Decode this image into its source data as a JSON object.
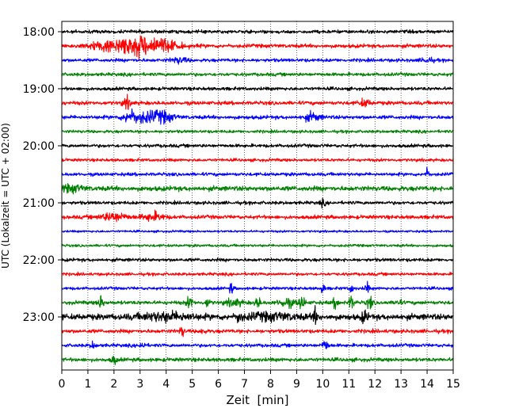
{
  "chart_data": {
    "type": "line",
    "title": "",
    "xlabel": "Zeit  [min]",
    "ylabel": "UTC (Lokalzeit = UTC + 02:00)",
    "xlim": [
      0,
      15
    ],
    "x_ticks": [
      0,
      1,
      2,
      3,
      4,
      5,
      6,
      7,
      8,
      9,
      10,
      11,
      12,
      13,
      14,
      15
    ],
    "x_tick_labels": [
      "0",
      "1",
      "2",
      "3",
      "4",
      "5",
      "6",
      "7",
      "8",
      "9",
      "10",
      "11",
      "12",
      "13",
      "14",
      "15"
    ],
    "y_tick_labels": [
      "18:00",
      "19:00",
      "20:00",
      "21:00",
      "22:00",
      "23:00"
    ],
    "grid": "vertical dotted",
    "row_minutes": 15,
    "start_time": "18:00",
    "colors": [
      "#000000",
      "#ff0000",
      "#0000ff",
      "#008000"
    ],
    "rows": [
      {
        "base": 0.9,
        "events": []
      },
      {
        "base": 1.0,
        "events": [
          [
            1.5,
            1.6,
            0.6
          ],
          [
            2.5,
            2.2,
            0.8
          ],
          [
            3.1,
            3.0,
            1.0
          ],
          [
            3.8,
            1.8,
            0.7
          ]
        ]
      },
      {
        "base": 0.9,
        "events": [
          [
            4.5,
            1.4,
            0.3
          ],
          [
            14.0,
            1.3,
            0.2
          ]
        ]
      },
      {
        "base": 0.9,
        "events": []
      },
      {
        "base": 0.9,
        "events": []
      },
      {
        "base": 1.0,
        "events": [
          [
            2.5,
            2.8,
            0.15
          ],
          [
            11.6,
            1.8,
            0.2
          ]
        ]
      },
      {
        "base": 1.0,
        "events": [
          [
            2.6,
            2.4,
            0.25
          ],
          [
            3.2,
            2.6,
            0.6
          ],
          [
            3.9,
            2.2,
            0.4
          ],
          [
            9.6,
            2.0,
            0.3
          ]
        ]
      },
      {
        "base": 0.8,
        "events": []
      },
      {
        "base": 0.9,
        "events": []
      },
      {
        "base": 0.8,
        "events": []
      },
      {
        "base": 0.9,
        "events": [
          [
            14.0,
            2.8,
            0.08
          ]
        ]
      },
      {
        "base": 1.3,
        "events": [
          [
            0.4,
            1.6,
            0.4
          ]
        ]
      },
      {
        "base": 0.9,
        "events": [
          [
            10.0,
            1.5,
            0.1
          ]
        ]
      },
      {
        "base": 1.0,
        "events": [
          [
            2.0,
            2.2,
            0.5
          ],
          [
            3.5,
            2.0,
            0.4
          ]
        ]
      },
      {
        "base": 0.6,
        "events": []
      },
      {
        "base": 0.7,
        "events": []
      },
      {
        "base": 0.9,
        "events": []
      },
      {
        "base": 0.8,
        "events": []
      },
      {
        "base": 0.8,
        "events": [
          [
            6.5,
            3.0,
            0.07
          ],
          [
            10.0,
            3.0,
            0.07
          ],
          [
            11.1,
            2.6,
            0.07
          ],
          [
            11.7,
            3.0,
            0.07
          ]
        ]
      },
      {
        "base": 1.0,
        "events": [
          [
            1.5,
            3.0,
            0.12
          ],
          [
            4.9,
            3.0,
            0.12
          ],
          [
            5.6,
            2.6,
            0.08
          ],
          [
            6.6,
            1.8,
            0.3
          ],
          [
            7.5,
            3.2,
            0.1
          ],
          [
            8.6,
            2.2,
            0.3
          ],
          [
            9.2,
            3.4,
            0.12
          ],
          [
            10.5,
            3.2,
            0.1
          ],
          [
            11.1,
            3.5,
            0.1
          ],
          [
            11.8,
            3.2,
            0.1
          ],
          [
            12.9,
            2.0,
            0.1
          ]
        ]
      },
      {
        "base": 1.6,
        "events": [
          [
            4.0,
            1.8,
            1.0
          ],
          [
            6.8,
            3.6,
            0.08
          ],
          [
            9.7,
            3.6,
            0.1
          ],
          [
            11.6,
            3.6,
            0.1
          ],
          [
            8.0,
            1.5,
            1.0
          ]
        ]
      },
      {
        "base": 1.0,
        "events": [
          [
            4.6,
            3.0,
            0.08
          ],
          [
            5.4,
            2.2,
            0.08
          ]
        ]
      },
      {
        "base": 0.9,
        "events": [
          [
            1.2,
            1.8,
            0.1
          ],
          [
            3.1,
            1.8,
            0.1
          ],
          [
            10.1,
            2.8,
            0.12
          ]
        ]
      },
      {
        "base": 1.0,
        "events": [
          [
            2.0,
            2.2,
            0.1
          ]
        ]
      }
    ]
  }
}
